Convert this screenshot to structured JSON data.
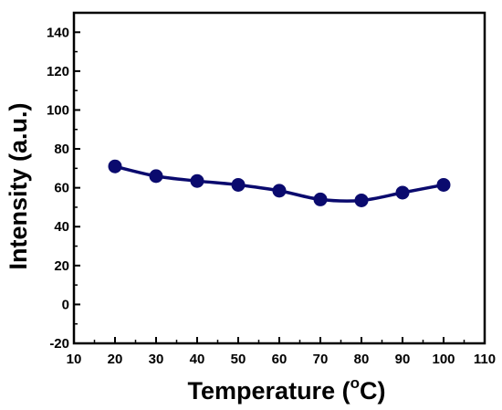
{
  "chart_data": {
    "type": "line",
    "x": [
      20,
      30,
      40,
      50,
      60,
      70,
      80,
      90,
      100
    ],
    "series": [
      {
        "values": [
          71,
          66,
          63.5,
          61.5,
          58.5,
          54,
          53.5,
          57.5,
          61.5
        ]
      }
    ],
    "xlabel": {
      "main": "Temperature (",
      "superscript": "o",
      "unit": "C)"
    },
    "ylabel": "Intensity (a.u.)",
    "xlim": [
      10,
      110
    ],
    "ylim": [
      -20,
      150
    ],
    "xticks": [
      "10",
      "20",
      "30",
      "40",
      "50",
      "60",
      "70",
      "80",
      "90",
      "100",
      "110"
    ],
    "yticks": [
      "-20",
      "0",
      "20",
      "40",
      "60",
      "80",
      "100",
      "120",
      "140"
    ],
    "grid": false,
    "line_color": "#0a0a6e",
    "marker_color": "#0a0a6e",
    "axis_color": "#000000"
  }
}
